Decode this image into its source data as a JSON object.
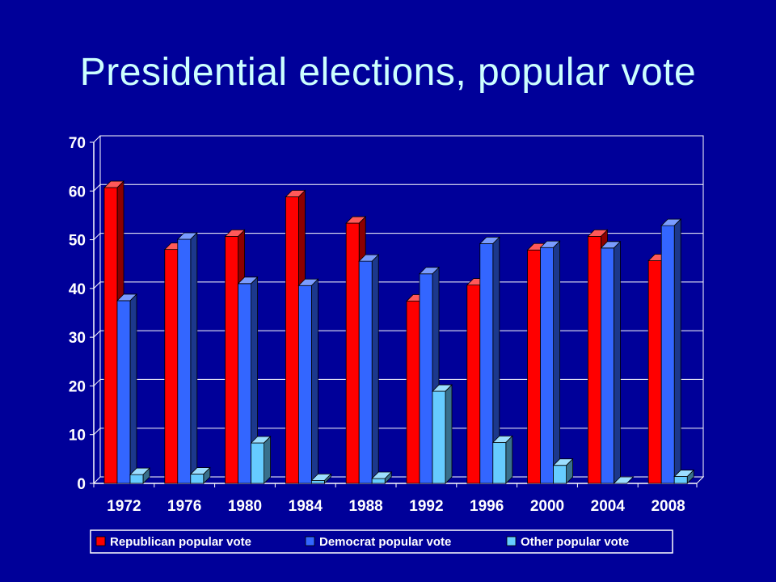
{
  "slide": {
    "title": "Presidential elections, popular vote"
  },
  "colors": {
    "background": "#000099",
    "title": "#ccffff",
    "series": [
      "#ff0000",
      "#3366ff",
      "#66ccff"
    ]
  },
  "chart_data": {
    "type": "bar",
    "style": "3d-clustered",
    "categories": [
      "1972",
      "1976",
      "1980",
      "1984",
      "1988",
      "1992",
      "1996",
      "2000",
      "2004",
      "2008"
    ],
    "series": [
      {
        "name": "Republican popular vote",
        "values": [
          60.7,
          48.0,
          50.7,
          58.8,
          53.4,
          37.4,
          40.7,
          47.9,
          50.7,
          45.7
        ]
      },
      {
        "name": "Democrat popular vote",
        "values": [
          37.5,
          50.1,
          41.0,
          40.6,
          45.6,
          43.0,
          49.2,
          48.4,
          48.3,
          52.9
        ]
      },
      {
        "name": "Other popular vote",
        "values": [
          1.8,
          1.9,
          8.3,
          0.6,
          1.0,
          18.9,
          8.4,
          3.7,
          0.0,
          1.4
        ]
      }
    ],
    "ylim": [
      0,
      70
    ],
    "yticks": [
      "0",
      "10",
      "20",
      "30",
      "40",
      "50",
      "60",
      "70"
    ],
    "grid": true,
    "legend": "bottom"
  }
}
